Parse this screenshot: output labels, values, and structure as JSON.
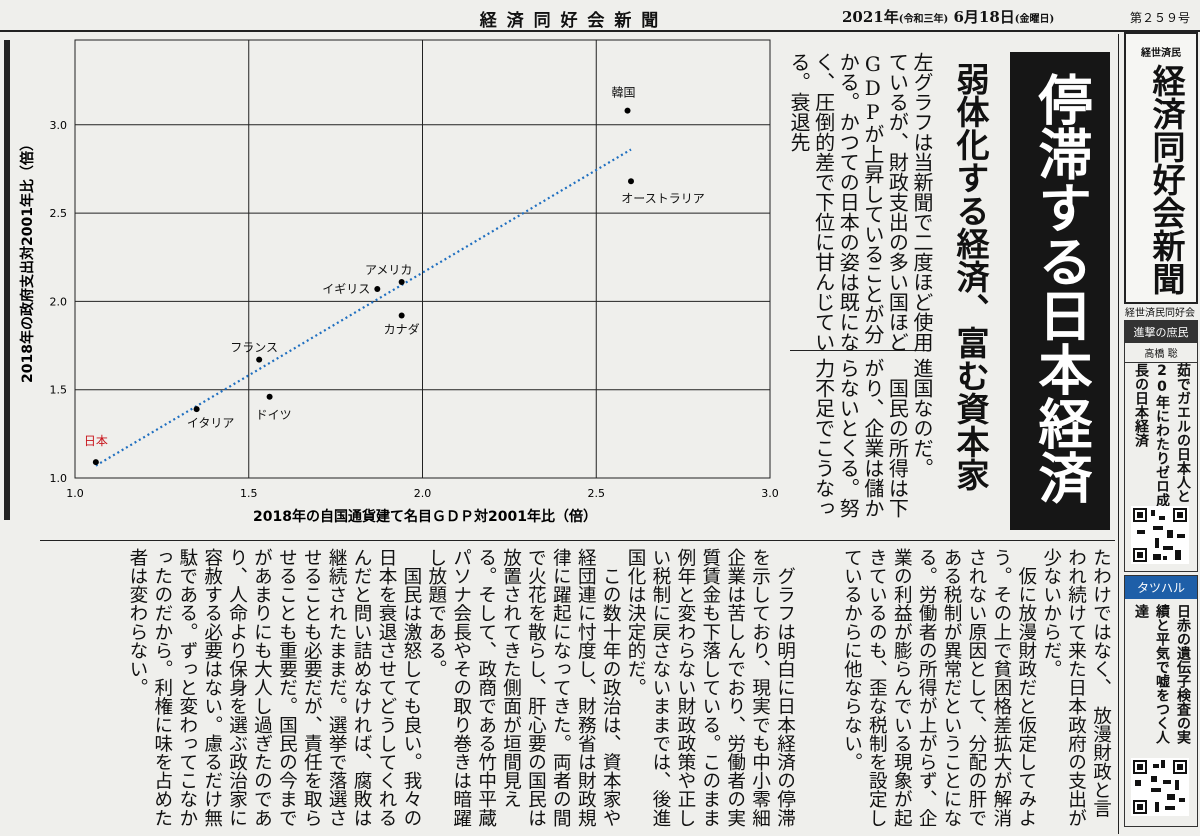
{
  "header": {
    "paper_title": "経 済 同 好 会 新 聞",
    "date_year": "2021年",
    "era": "(令和三年)",
    "date_day": "6月18日",
    "weekday": "(金曜日)",
    "issue": "第２５９号"
  },
  "chart_data": {
    "type": "scatter",
    "x_label": "2018年の自国通貨建て名目ＧＤＰ対2001年比（倍）",
    "y_label": "2018年の政府支出対2001年比（倍）",
    "series": [
      {
        "color": "#000000",
        "labels": [
          "日本",
          "イタリア",
          "ドイツ",
          "フランス",
          "イギリス",
          "アメリカ",
          "カナダ",
          "韓国",
          "オーストラリア"
        ],
        "label_colors": [
          "#c8161d",
          "#111111",
          "#111111",
          "#111111",
          "#111111",
          "#111111",
          "#111111",
          "#111111",
          "#111111"
        ],
        "x": [
          1.06,
          1.35,
          1.56,
          1.53,
          1.87,
          1.94,
          1.94,
          2.59,
          2.6
        ],
        "values": [
          1.09,
          1.39,
          1.46,
          1.67,
          2.07,
          2.11,
          1.92,
          3.08,
          2.68
        ]
      }
    ],
    "trendline": {
      "color": "#1f6fc0",
      "x": [
        1.06,
        2.6
      ],
      "y": [
        1.07,
        2.86
      ]
    },
    "xlim": [
      1.0,
      3.0
    ],
    "ylim": [
      1.0,
      3.48
    ],
    "xticks": [
      {
        "value": 1.0,
        "label": "1.0"
      },
      1.5,
      {
        "value": 2.0,
        "label": "2.0"
      },
      2.5,
      {
        "value": 3.0,
        "label": "3.0"
      }
    ],
    "yticks": [
      {
        "value": 1.0,
        "label": "1.0"
      },
      1.5,
      {
        "value": 2.0,
        "label": "2.0"
      },
      2.5,
      {
        "value": 3.0,
        "label": "3.0"
      }
    ],
    "grid": true
  },
  "article": {
    "headline": "停滞する日本経済",
    "subheadline": "弱体化する経済、富む資本家",
    "blocks": [
      "左グラフは当新聞で二度ほど使用ているが、財政支出の多い国ほどGDPが上昇していることが分かる。かつての日本の姿は既になく、圧倒的差で下位に甘んじている。衰退先",
      "進国なのだ。\n　国民の所得は下がり、企業は儲からないとくる。努力不足でこうなっ",
      "たわけではなく、　放漫財政と言われ続けて来た日本政府の支出が少ないからだ。\n　仮に放漫財政だと仮定してみよう。その上で貧困格差拡大が解消されない原因として、分配の肝である税制が異常だということになる。労働者の所得が上がらず、企業の利益が膨らんでいる現象が起きているのも、歪な税制を設定しているからに他ならない。",
      "　グラフは明白に日本経済の停滞を示しており、現実でも中小零細企業は苦しんでおり、労働者の実質賃金も下落している。このまま例年と変わらない財政政策や正しい税制に戻さないままでは、後進国化は決定的だ。\n　この数十年の政治は、資本家や経団連に忖度し、財務省は財政規律に躍起になってきた。両者の間で火花を散らし、肝心要の国民は放置されてきた側面が垣間見える。そして、政商である竹中平蔵パソナ会長やその取り巻きは暗躍し放題である。\n　国民は激怒しても良い。我々の日本を衰退させてどうしてくれるんだと問い詰めなければ、腐敗は継続されたままだ。選挙で落選させることも必要だが、責任を取らせることも重要だ。国民の今までがあまりにも大人し過ぎたのであり、人命より保身を選ぶ政治家に容赦する必要はない。慮るだけ無駄である。ずっと変わってこなかったのだから。利権に味を占めた者は変わらない。"
    ]
  },
  "sidebar": {
    "masthead_small": "経世済民",
    "masthead": "経済同好会新聞",
    "publisher": "経世済民同好会",
    "columns": [
      {
        "series": "進撃の庶民",
        "author": "高橋 聡",
        "title": "茹でガエルの日本人と20年にわたりゼロ成長の日本経済"
      },
      {
        "series": "タツハル",
        "title": "日赤の遺伝子検査の実績と平気で嘘をつく人達"
      }
    ]
  }
}
